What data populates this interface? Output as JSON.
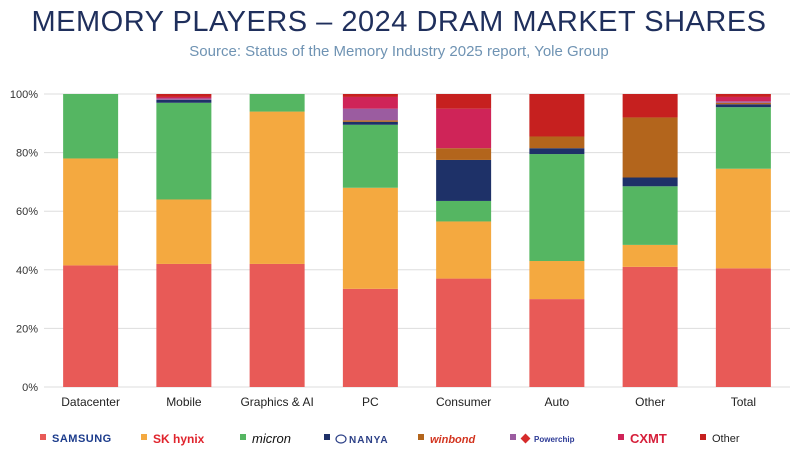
{
  "title": "MEMORY PLAYERS – 2024 DRAM MARKET SHARES",
  "subtitle": "Source: Status of the Memory Industry 2025 report, Yole Group",
  "colors": {
    "samsung": "#e85a57",
    "skhynix": "#f4a940",
    "micron": "#55b662",
    "nanya": "#1e3168",
    "winbond": "#b3651c",
    "powerchip": "#9b5ca0",
    "cxmt": "#cf2458",
    "other": "#c6201f"
  },
  "chart_data": {
    "type": "bar",
    "stacked": true,
    "ylim": [
      0,
      100
    ],
    "yticks": [
      0,
      20,
      40,
      60,
      80,
      100
    ],
    "ytick_labels": [
      "0%",
      "20%",
      "40%",
      "60%",
      "80%",
      "100%"
    ],
    "categories": [
      "Datacenter",
      "Mobile",
      "Graphics & AI",
      "PC",
      "Consumer",
      "Auto",
      "Other",
      "Total"
    ],
    "legend_position": "bottom",
    "series": [
      {
        "name": "SAMSUNG",
        "key": "samsung",
        "values": [
          41.5,
          42,
          42,
          33.5,
          37,
          30,
          41,
          40.5
        ]
      },
      {
        "name": "SK hynix",
        "key": "skhynix",
        "values": [
          36.5,
          22,
          52,
          34.5,
          19.5,
          13,
          7.5,
          34
        ]
      },
      {
        "name": "micron",
        "key": "micron",
        "values": [
          22,
          33,
          6,
          21.5,
          7,
          36.5,
          20,
          21
        ]
      },
      {
        "name": "NANYA",
        "key": "nanya",
        "values": [
          0,
          1,
          0,
          1,
          14,
          2,
          3,
          1
        ]
      },
      {
        "name": "winbond",
        "key": "winbond",
        "values": [
          0,
          0,
          0,
          0.5,
          4,
          4,
          20.5,
          0.5
        ]
      },
      {
        "name": "Powerchip",
        "key": "powerchip",
        "values": [
          0,
          0.5,
          0,
          4,
          0,
          0,
          0,
          0.5
        ]
      },
      {
        "name": "CXMT",
        "key": "cxmt",
        "values": [
          0,
          0.5,
          0,
          4,
          13.5,
          0,
          0,
          1.5
        ]
      },
      {
        "name": "Other",
        "key": "other",
        "values": [
          0,
          1,
          0,
          1,
          5,
          14.5,
          8,
          1
        ]
      }
    ]
  }
}
